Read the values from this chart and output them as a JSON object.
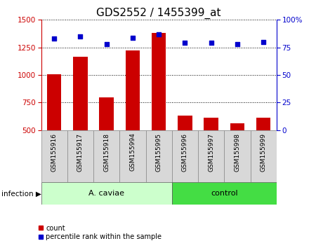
{
  "title": "GDS2552 / 1455399_at",
  "samples": [
    "GSM155916",
    "GSM155917",
    "GSM155918",
    "GSM155994",
    "GSM155995",
    "GSM155996",
    "GSM155997",
    "GSM155998",
    "GSM155999"
  ],
  "counts": [
    1010,
    1165,
    800,
    1220,
    1380,
    635,
    615,
    565,
    615
  ],
  "percentiles": [
    83,
    85,
    78,
    84,
    87,
    79,
    79,
    78,
    80
  ],
  "ylim_left": [
    500,
    1500
  ],
  "ylim_right": [
    0,
    100
  ],
  "yticks_left": [
    500,
    750,
    1000,
    1250,
    1500
  ],
  "yticks_right": [
    0,
    25,
    50,
    75,
    100
  ],
  "yticklabels_right": [
    "0",
    "25",
    "50",
    "75",
    "100%"
  ],
  "bar_color": "#cc0000",
  "dot_color": "#0000cc",
  "title_fontsize": 11,
  "group1_label": "A. caviae",
  "group2_label": "control",
  "factor_label": "infection",
  "group1_color": "#ccffcc",
  "group2_color": "#44dd44",
  "legend_count_label": "count",
  "legend_percentile_label": "percentile rank within the sample",
  "n_group1": 5,
  "n_group2": 4,
  "tick_fontsize": 7.5,
  "label_fontsize": 7.5,
  "group_fontsize": 8
}
